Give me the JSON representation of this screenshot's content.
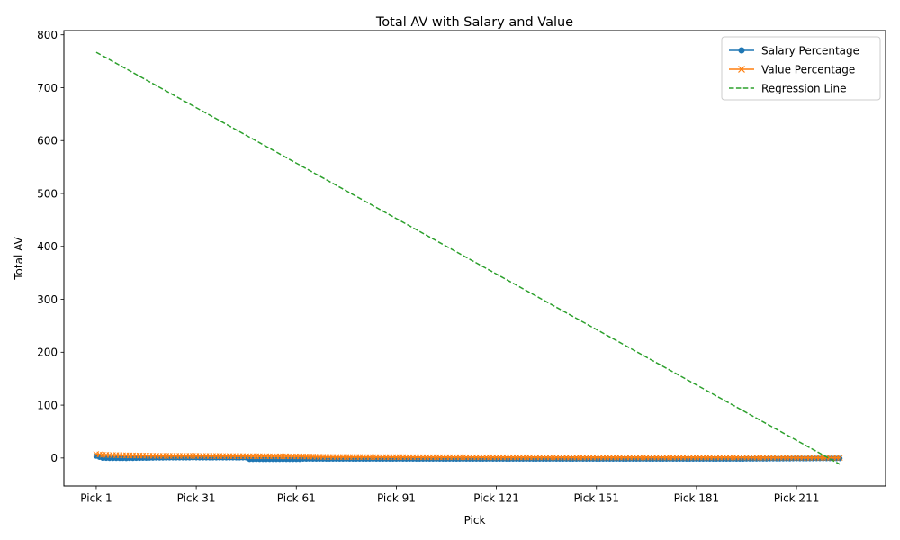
{
  "chart_data": {
    "type": "line",
    "title": "Total AV with Salary and Value",
    "xlabel": "Pick",
    "ylabel": "Total AV",
    "xlim": [
      -8.7,
      237.7
    ],
    "ylim": [
      -53,
      808
    ],
    "yticks": [
      0,
      100,
      200,
      300,
      400,
      500,
      600,
      700,
      800
    ],
    "xtick_picks": [
      1,
      31,
      61,
      91,
      121,
      151,
      181,
      211
    ],
    "xtick_labels": [
      "Pick 1",
      "Pick 31",
      "Pick 61",
      "Pick 91",
      "Pick 121",
      "Pick 151",
      "Pick 181",
      "Pick 211"
    ],
    "pick_range": [
      1,
      224
    ],
    "legend_position": "top-right",
    "grid": false,
    "series": [
      {
        "name": "Salary Percentage",
        "color": "#1f77b4",
        "marker": "circle",
        "points": [
          [
            1,
            3.5
          ],
          [
            3,
            -0.5
          ],
          [
            10,
            -0.8
          ],
          [
            20,
            0.2
          ],
          [
            30,
            0.5
          ],
          [
            46,
            0.3
          ],
          [
            47,
            -2.5
          ],
          [
            62,
            -2.5
          ],
          [
            63,
            -2
          ],
          [
            100,
            -2
          ],
          [
            150,
            -2
          ],
          [
            190,
            -2
          ],
          [
            224,
            -1
          ]
        ]
      },
      {
        "name": "Value Percentage",
        "color": "#ff7f0e",
        "marker": "x",
        "points": [
          [
            1,
            7.5
          ],
          [
            3,
            6
          ],
          [
            10,
            5
          ],
          [
            20,
            4
          ],
          [
            30,
            4
          ],
          [
            46,
            3.5
          ],
          [
            62,
            3
          ],
          [
            70,
            2
          ],
          [
            100,
            1.5
          ],
          [
            150,
            1
          ],
          [
            190,
            1
          ],
          [
            224,
            0.5
          ]
        ]
      },
      {
        "name": "Regression Line",
        "color": "#2ca02c",
        "dashed": true,
        "points": [
          [
            1,
            767
          ],
          [
            224,
            -12
          ]
        ]
      }
    ]
  }
}
